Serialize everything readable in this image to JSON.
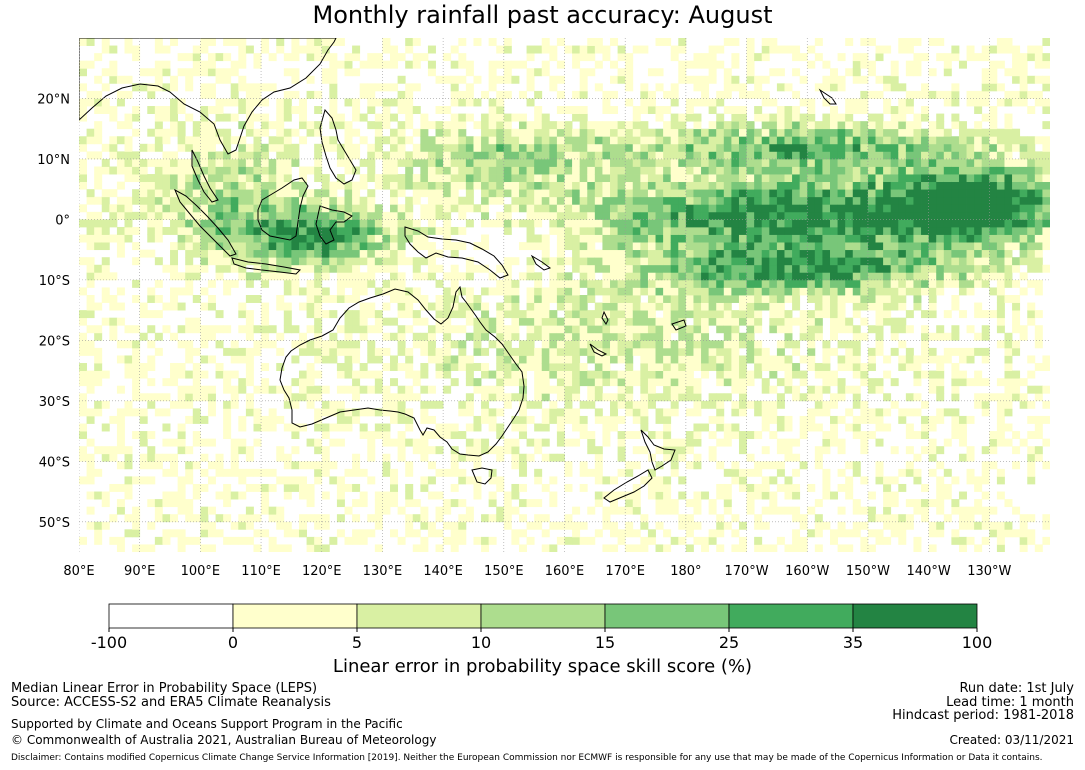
{
  "title": "Monthly rainfall past accuracy: August",
  "map": {
    "lat_labels": [
      {
        "lat": 20,
        "text": "20°N"
      },
      {
        "lat": 10,
        "text": "10°N"
      },
      {
        "lat": 0,
        "text": "0°"
      },
      {
        "lat": -10,
        "text": "10°S"
      },
      {
        "lat": -20,
        "text": "20°S"
      },
      {
        "lat": -30,
        "text": "30°S"
      },
      {
        "lat": -40,
        "text": "40°S"
      },
      {
        "lat": -50,
        "text": "50°S"
      }
    ],
    "lon_labels": [
      {
        "lon": 80,
        "text": "80°E"
      },
      {
        "lon": 90,
        "text": "90°E"
      },
      {
        "lon": 100,
        "text": "100°E"
      },
      {
        "lon": 110,
        "text": "110°E"
      },
      {
        "lon": 120,
        "text": "120°E"
      },
      {
        "lon": 130,
        "text": "130°E"
      },
      {
        "lon": 140,
        "text": "140°E"
      },
      {
        "lon": 150,
        "text": "150°E"
      },
      {
        "lon": 160,
        "text": "160°E"
      },
      {
        "lon": 170,
        "text": "170°E"
      },
      {
        "lon": 180,
        "text": "180°"
      },
      {
        "lon": 190,
        "text": "170°W"
      },
      {
        "lon": 200,
        "text": "160°W"
      },
      {
        "lon": 210,
        "text": "150°W"
      },
      {
        "lon": 220,
        "text": "140°W"
      },
      {
        "lon": 230,
        "text": "130°W"
      }
    ],
    "lon_range": [
      80,
      240
    ],
    "lat_range": [
      -55,
      30
    ],
    "grid": true
  },
  "colorbar": {
    "title": "Linear error in probability space skill score (%)",
    "ticks": [
      "-100",
      "0",
      "5",
      "10",
      "15",
      "25",
      "35",
      "100"
    ],
    "colors": [
      "#ffffff",
      "#ffffcc",
      "#d9f0a3",
      "#addd8e",
      "#78c679",
      "#41ab5d",
      "#238443"
    ]
  },
  "footer": {
    "left_line1": "Median Linear Error in Probability Space (LEPS)",
    "left_line2": "Source: ACCESS-S2 and ERA5 Climate Reanalysis",
    "left_line3": "Supported by Climate and Oceans Support Program in the Pacific",
    "left_line4": "© Commonwealth of Australia 2021, Australian Bureau of Meteorology",
    "right_line1": "Run date: 1st July",
    "right_line2": "Lead time: 1 month",
    "right_line3": "Hindcast period: 1981-2018",
    "right_line4": "Created: 03/11/2021",
    "disclaimer": "Disclaimer: Contains modified Copernicus Climate Change Service Information [2019]. Neither the European Commission nor ECMWF is responsible for any use that may be made of the Copernicus Information or Data it contains."
  }
}
